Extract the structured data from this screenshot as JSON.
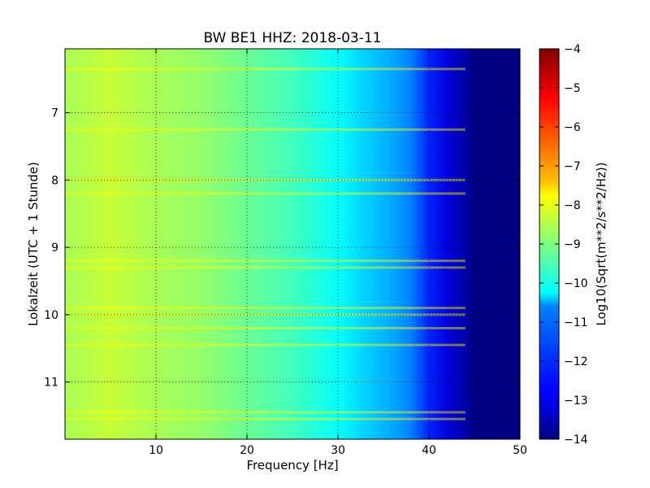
{
  "chart_data": {
    "type": "heatmap",
    "title": "BW BE1 HHZ: 2018-03-11",
    "xlabel": "Frequency [Hz]",
    "ylabel": "Lokalzeit (UTC + 1 Stunde)",
    "colorbar_label": "Log10(Sqrt(m**2/s**2/Hz))",
    "xlim": [
      0,
      50
    ],
    "ylim": [
      11.85,
      6.05
    ],
    "x_ticks": [
      10,
      20,
      30,
      40,
      50
    ],
    "y_ticks": [
      7,
      8,
      9,
      10,
      11
    ],
    "clim": [
      -14,
      -4
    ],
    "colorbar_ticks": [
      -14,
      -13,
      -12,
      -11,
      -10,
      -9,
      -8,
      -7,
      -6,
      -5,
      -4
    ],
    "colormap": "jet",
    "grid": true,
    "y_axis_inverted": true,
    "spectral_profile": [
      {
        "freq": 0,
        "value": -8.6
      },
      {
        "freq": 5,
        "value": -8.3
      },
      {
        "freq": 10,
        "value": -8.6
      },
      {
        "freq": 15,
        "value": -8.8
      },
      {
        "freq": 20,
        "value": -9.2
      },
      {
        "freq": 25,
        "value": -9.6
      },
      {
        "freq": 30,
        "value": -10.2
      },
      {
        "freq": 33,
        "value": -10.7
      },
      {
        "freq": 36,
        "value": -11.1
      },
      {
        "freq": 38,
        "value": -11.5
      },
      {
        "freq": 40,
        "value": -12.4
      },
      {
        "freq": 42,
        "value": -13.1
      },
      {
        "freq": 44,
        "value": -13.6
      },
      {
        "freq": 45,
        "value": -14.0
      },
      {
        "freq": 50,
        "value": -14.0
      }
    ],
    "high_amplitude_times": [
      6.35,
      7.25,
      8.0,
      8.2,
      9.2,
      9.3,
      9.9,
      10.0,
      10.2,
      10.45,
      11.45,
      11.55
    ]
  }
}
